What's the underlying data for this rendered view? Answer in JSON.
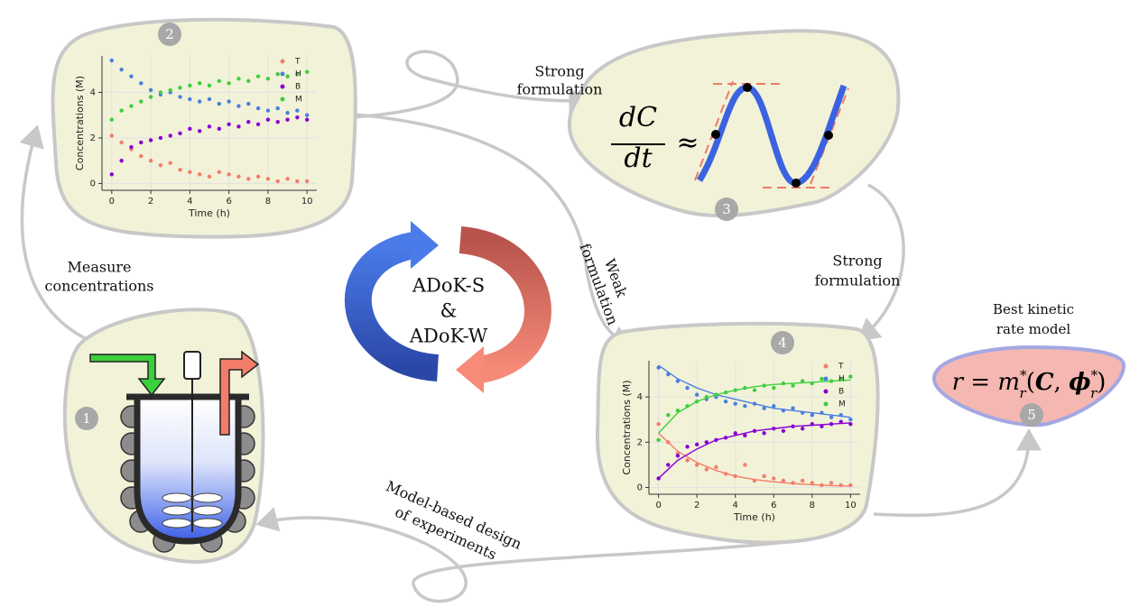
{
  "badges": [
    "1",
    "2",
    "3",
    "4",
    "5"
  ],
  "edges": {
    "measure": [
      "Measure",
      "concentrations"
    ],
    "strong_top": [
      "Strong",
      "formulation"
    ],
    "weak": [
      "Weak",
      "formulation"
    ],
    "strong_right": [
      "Strong",
      "formulation"
    ],
    "design": [
      "Model-based design",
      "of experiments"
    ]
  },
  "center": [
    "ADoK-S",
    "&",
    "ADoK-W"
  ],
  "derivative": {
    "numerator": "dC",
    "denominator": "dt",
    "approx": "≈"
  },
  "result": {
    "title": [
      "Best kinetic",
      "rate model"
    ],
    "formula": {
      "lhs": "r = m",
      "sup1": "*",
      "sub1": "r",
      "open": "(",
      "arg1": "C",
      "comma": ", ",
      "arg2": "ϕ",
      "sup2": "*",
      "sub2": "r",
      "close": ")"
    }
  },
  "charts": [
    {
      "type": "scatter",
      "xlabel": "Time (h)",
      "ylabel": "Concentrations (M)",
      "xlim": [
        -0.5,
        10.5
      ],
      "ylim": [
        -0.3,
        5.6
      ],
      "xticks": [
        0,
        2,
        4,
        6,
        8,
        10
      ],
      "yticks": [
        0,
        2,
        4
      ],
      "grid": true,
      "legend": "upper right",
      "x": [
        0,
        0.5,
        1,
        1.5,
        2,
        2.5,
        3,
        3.5,
        4,
        4.5,
        5,
        5.5,
        6,
        6.5,
        7,
        7.5,
        8,
        8.5,
        9,
        9.5,
        10
      ],
      "series": [
        {
          "name": "T",
          "color": "#f47c6a",
          "values": [
            2.1,
            1.8,
            1.5,
            1.2,
            1.0,
            0.8,
            0.9,
            0.6,
            0.5,
            0.4,
            0.3,
            0.5,
            0.4,
            0.3,
            0.2,
            0.3,
            0.2,
            0.1,
            0.2,
            0.1,
            0.1
          ]
        },
        {
          "name": "H",
          "color": "#4a7fe0",
          "values": [
            5.4,
            5.0,
            4.7,
            4.4,
            4.1,
            3.9,
            4.0,
            3.8,
            3.7,
            3.6,
            3.7,
            3.5,
            3.6,
            3.4,
            3.5,
            3.3,
            3.2,
            3.3,
            3.1,
            3.2,
            3.0
          ]
        },
        {
          "name": "B",
          "color": "#8a00d4",
          "values": [
            0.4,
            1.0,
            1.6,
            1.8,
            1.9,
            2.0,
            2.1,
            2.2,
            2.4,
            2.3,
            2.5,
            2.4,
            2.6,
            2.5,
            2.7,
            2.6,
            2.8,
            2.7,
            2.8,
            2.9,
            2.8
          ]
        },
        {
          "name": "M",
          "color": "#3ecf3e",
          "values": [
            2.8,
            3.2,
            3.4,
            3.6,
            3.8,
            4.0,
            4.1,
            4.2,
            4.3,
            4.4,
            4.3,
            4.5,
            4.4,
            4.6,
            4.5,
            4.7,
            4.6,
            4.8,
            4.7,
            4.8,
            4.9
          ]
        }
      ]
    },
    {
      "type": "scatter",
      "xlabel": "Time (h)",
      "ylabel": "Concentrations (M)",
      "xlim": [
        -0.5,
        10.5
      ],
      "ylim": [
        -0.3,
        5.6
      ],
      "xticks": [
        0,
        2,
        4,
        6,
        8,
        10
      ],
      "yticks": [
        0,
        2,
        4
      ],
      "grid": true,
      "legend": "upper right",
      "x": [
        0,
        0.5,
        1,
        1.5,
        2,
        2.5,
        3,
        3.5,
        4,
        4.5,
        5,
        5.5,
        6,
        6.5,
        7,
        7.5,
        8,
        8.5,
        9,
        9.5,
        10
      ],
      "fit_x": [
        0,
        1,
        2,
        3,
        4,
        5,
        6,
        7,
        8,
        9,
        10
      ],
      "series": [
        {
          "name": "T",
          "color": "#f47c6a",
          "values": [
            2.8,
            2.0,
            1.5,
            1.2,
            1.0,
            0.8,
            0.9,
            0.6,
            0.5,
            1.0,
            0.3,
            0.5,
            0.4,
            0.3,
            0.2,
            0.3,
            0.2,
            0.1,
            0.2,
            0.1,
            0.1
          ],
          "fit": [
            2.4,
            1.6,
            1.1,
            0.75,
            0.5,
            0.35,
            0.25,
            0.17,
            0.12,
            0.08,
            0.06
          ]
        },
        {
          "name": "H",
          "color": "#4a7fe0",
          "values": [
            5.3,
            5.0,
            4.7,
            4.4,
            4.1,
            3.9,
            4.0,
            3.8,
            3.7,
            3.6,
            3.7,
            3.5,
            3.6,
            3.4,
            3.5,
            3.3,
            3.2,
            3.3,
            3.1,
            3.2,
            3.0
          ],
          "fit": [
            5.4,
            4.8,
            4.4,
            4.1,
            3.9,
            3.7,
            3.5,
            3.4,
            3.3,
            3.2,
            3.1
          ]
        },
        {
          "name": "B",
          "color": "#8a00d4",
          "values": [
            0.4,
            1.0,
            1.4,
            1.8,
            1.9,
            2.0,
            2.1,
            2.2,
            2.4,
            2.3,
            2.5,
            2.4,
            2.6,
            2.5,
            2.7,
            2.6,
            2.8,
            2.7,
            2.8,
            2.9,
            2.8
          ],
          "fit": [
            0.4,
            1.2,
            1.7,
            2.1,
            2.3,
            2.5,
            2.6,
            2.7,
            2.75,
            2.8,
            2.85
          ]
        },
        {
          "name": "M",
          "color": "#3ecf3e",
          "values": [
            2.1,
            3.2,
            3.4,
            3.6,
            3.8,
            4.0,
            4.1,
            4.2,
            4.3,
            4.4,
            4.3,
            4.5,
            4.4,
            4.6,
            4.5,
            4.7,
            4.6,
            4.8,
            4.7,
            4.8,
            4.9
          ],
          "fit": [
            2.4,
            3.3,
            3.8,
            4.1,
            4.3,
            4.45,
            4.55,
            4.6,
            4.65,
            4.7,
            4.75
          ]
        }
      ]
    }
  ]
}
